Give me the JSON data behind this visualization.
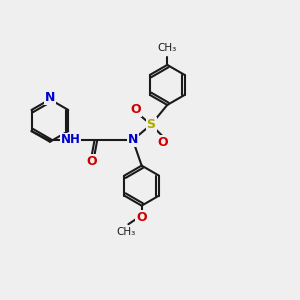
{
  "background_color": "#efefef",
  "bond_color": "#1a1a1a",
  "figsize": [
    3.0,
    3.0
  ],
  "dpi": 100,
  "atom_colors": {
    "N_blue": "#0000cc",
    "O_red": "#cc0000",
    "S_yellow": "#aaaa00",
    "C_default": "#1a1a1a"
  },
  "layout": {
    "xlim": [
      0,
      10
    ],
    "ylim": [
      0,
      10
    ]
  }
}
